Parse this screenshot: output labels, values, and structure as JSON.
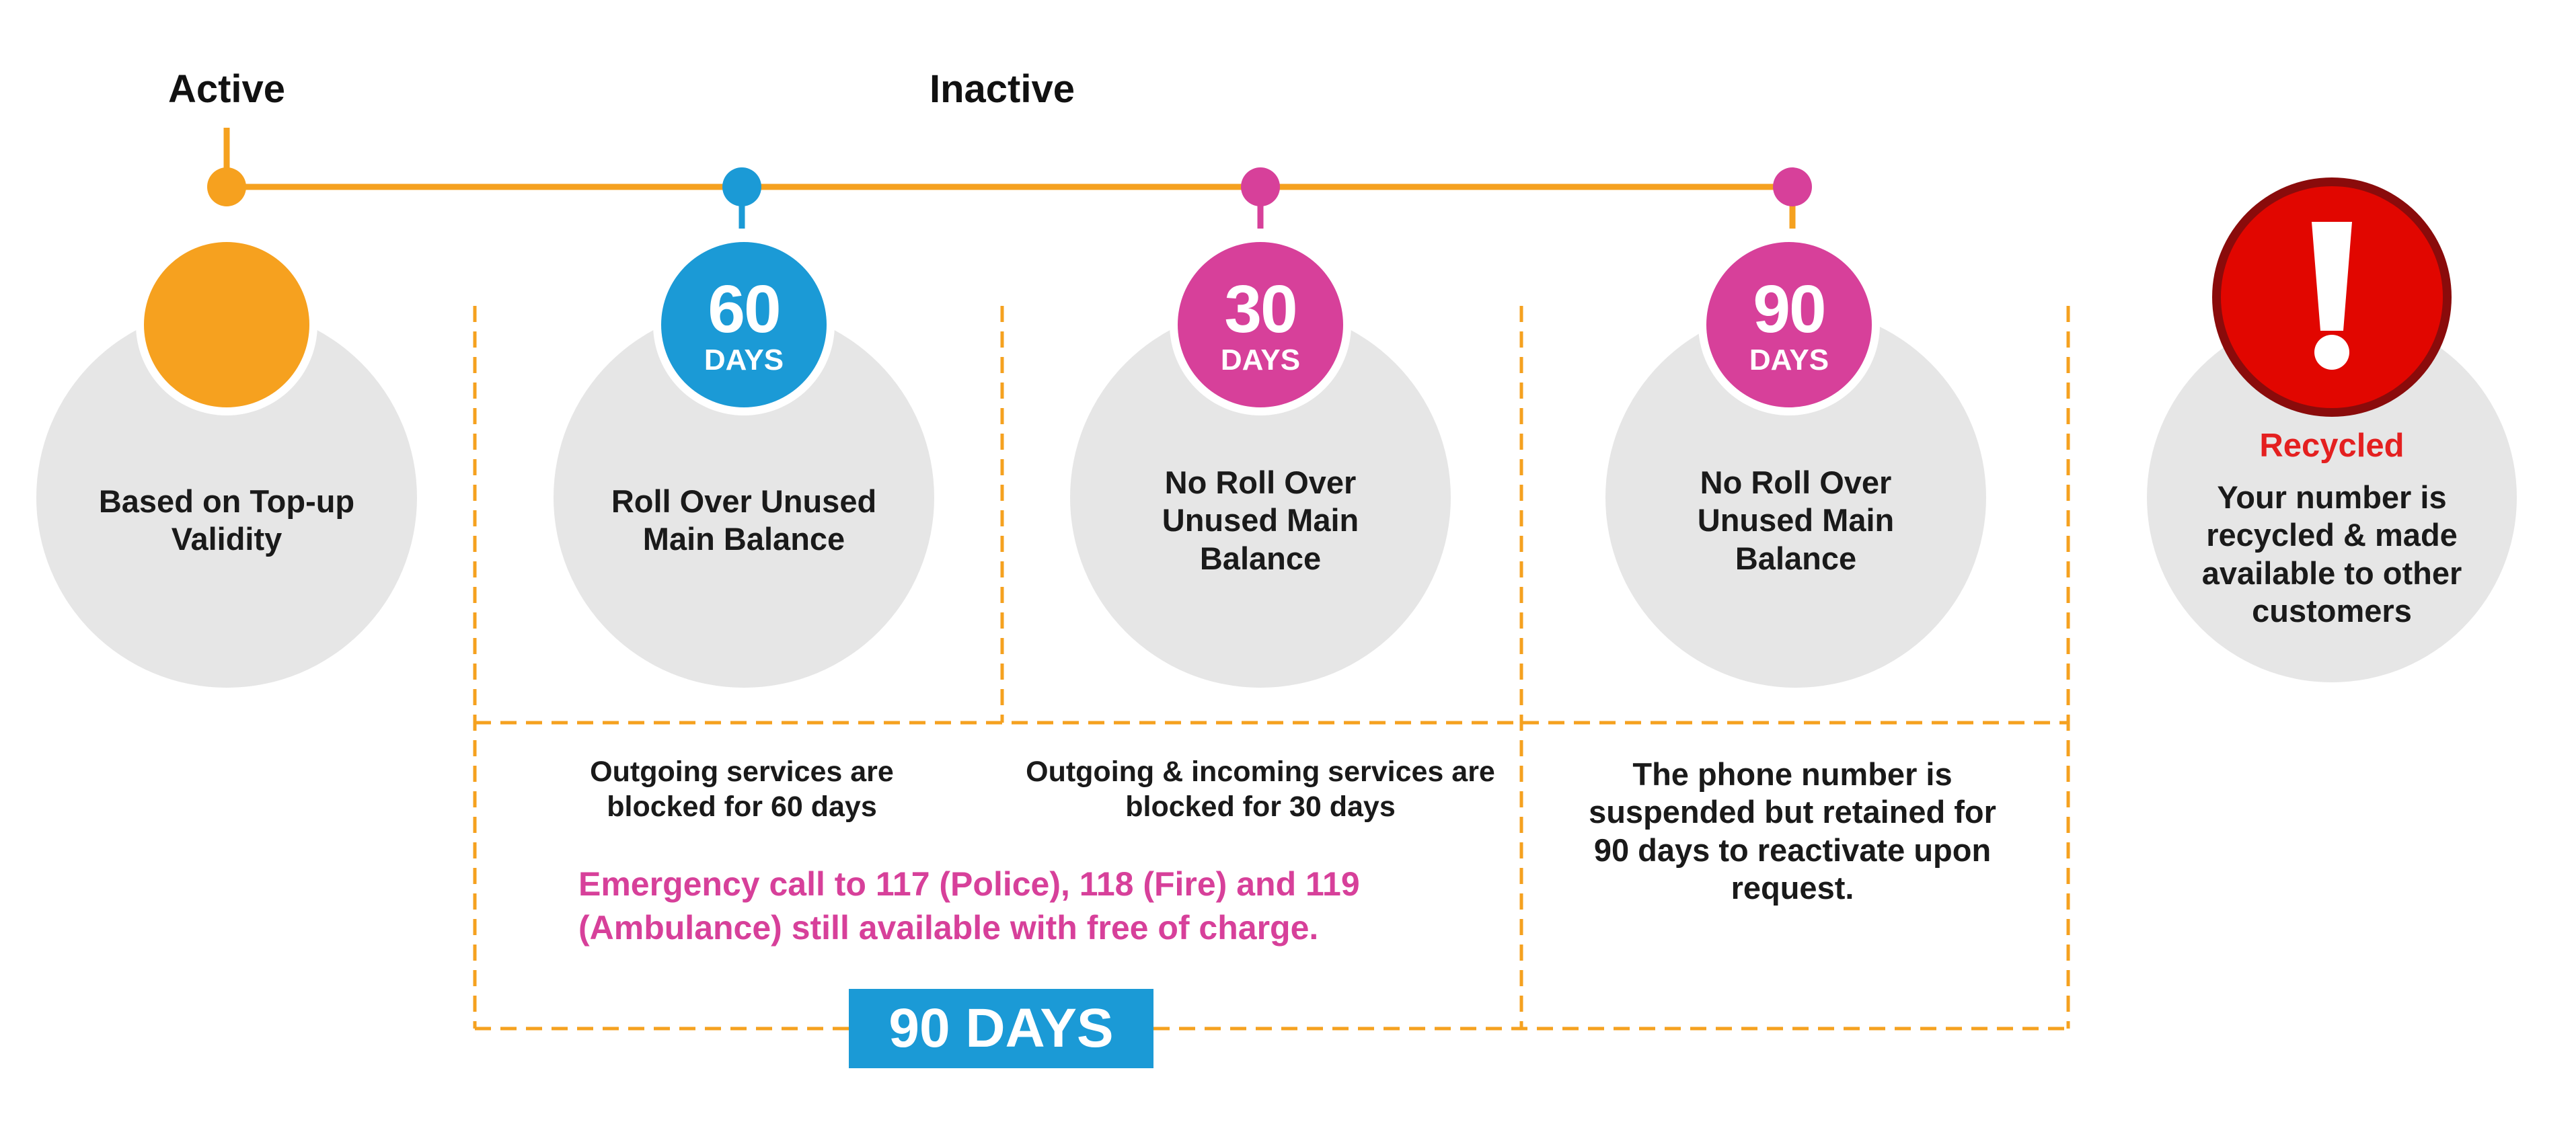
{
  "phases": {
    "active_label": "Active",
    "inactive_label": "Inactive"
  },
  "stages": [
    {
      "description": "Based on Top-up Validity"
    },
    {
      "days": "60",
      "days_unit": "DAYS",
      "description": "Roll Over Unused Main Balance"
    },
    {
      "days": "30",
      "days_unit": "DAYS",
      "description": "No Roll Over Unused Main Balance"
    },
    {
      "days": "90",
      "days_unit": "DAYS",
      "description": "No Roll Over Unused Main Balance"
    },
    {
      "title": "Recycled",
      "description": "Your number is recycled & made available to other customers"
    }
  ],
  "notes": {
    "outgoing_blocked": "Outgoing services are blocked for 60 days",
    "all_blocked": "Outgoing & incoming services are blocked for 30 days",
    "suspended": "The phone number is suspended but retained for 90 days to reactivate upon request.",
    "emergency": "Emergency call to 117 (Police), 118 (Fire) and 119 (Ambulance) still available with free of charge."
  },
  "badge": {
    "label": "90 DAYS"
  },
  "colors": {
    "timeline": "#f5a11f",
    "active": "#f6a11f",
    "sixty": "#1b9ad6",
    "pink": "#d7409a",
    "alert": "#e10600",
    "circle_bg": "#e6e6e6"
  },
  "icons": {
    "recycled": "exclamation-icon"
  }
}
